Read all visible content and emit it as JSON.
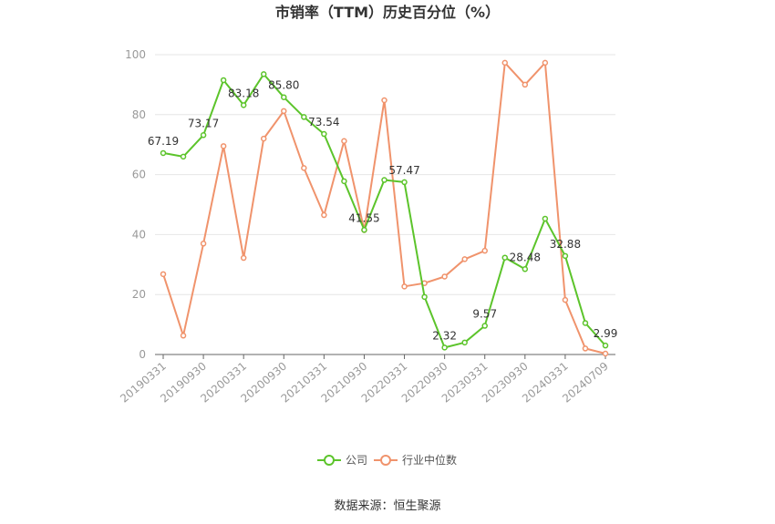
{
  "chart_data": {
    "type": "line",
    "title": "市销率（TTM）历史百分位（%）",
    "xlabel": "",
    "ylabel": "",
    "ylim": [
      0,
      100
    ],
    "yticks": [
      0,
      20,
      40,
      60,
      80,
      100
    ],
    "grid": true,
    "legend_position": "bottom",
    "x": [
      "20190331",
      "20190630",
      "20190930",
      "20191231",
      "20200331",
      "20200630",
      "20200930",
      "20201231",
      "20210331",
      "20210630",
      "20210930",
      "20211231",
      "20220331",
      "20220630",
      "20220930",
      "20221231",
      "20230331",
      "20230630",
      "20230930",
      "20231231",
      "20240331",
      "20240630",
      "20240709"
    ],
    "xtick_labels": [
      "20190331",
      "20190930",
      "20200331",
      "20200930",
      "20210331",
      "20210930",
      "20220331",
      "20220930",
      "20230331",
      "20230930",
      "20240331",
      "20240709"
    ],
    "series": [
      {
        "name": "公司",
        "color": "#5cc42b",
        "values": [
          67.19,
          66.0,
          73.17,
          91.5,
          83.18,
          93.5,
          85.8,
          79.2,
          73.54,
          57.8,
          41.55,
          58.2,
          57.47,
          19.2,
          2.32,
          4.0,
          9.57,
          32.3,
          28.48,
          45.3,
          32.88,
          10.5,
          2.99
        ],
        "labels": {
          "0": "67.19",
          "2": "73.17",
          "4": "83.18",
          "6": "85.80",
          "8": "73.54",
          "10": "41.55",
          "12": "57.47",
          "14": "2.32",
          "16": "9.57",
          "18": "28.48",
          "20": "32.88",
          "22": "2.99"
        }
      },
      {
        "name": "行业中位数",
        "color": "#f0936c",
        "values": [
          26.8,
          6.3,
          37.0,
          69.5,
          32.2,
          72.0,
          81.2,
          62.2,
          46.5,
          71.2,
          41.5,
          84.8,
          22.7,
          23.8,
          26.0,
          31.8,
          34.6,
          97.3,
          90.0,
          97.3,
          18.2,
          2.0,
          0.3
        ]
      }
    ],
    "source": "数据来源：恒生聚源"
  }
}
